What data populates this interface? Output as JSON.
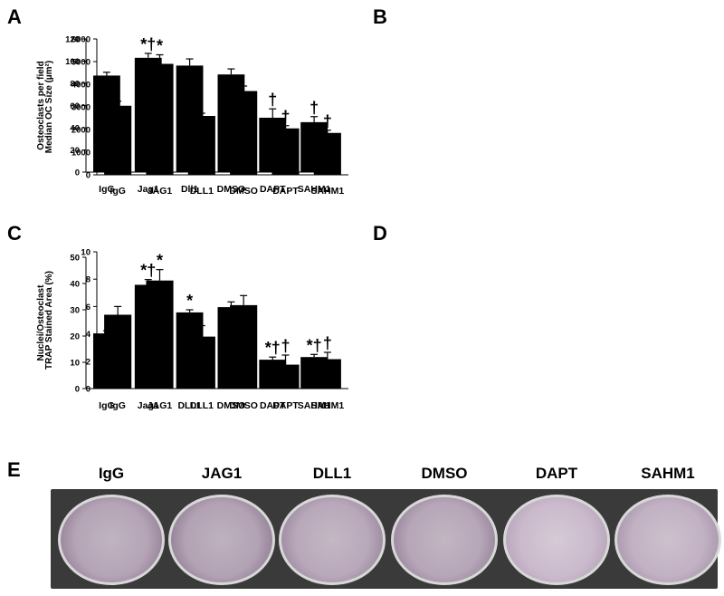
{
  "panels": {
    "A": "A",
    "B": "B",
    "C": "C",
    "D": "D",
    "E": "E"
  },
  "chart_data": [
    {
      "id": "A",
      "type": "bar",
      "ylabel": "Osteoclasts per  field",
      "ylim": [
        0,
        120
      ],
      "ytick_step": 20,
      "yticks": [
        "0",
        "20",
        "40",
        "60",
        "80",
        "100",
        "120"
      ],
      "categories": [
        "IgG",
        "Jag1",
        "Dll1",
        "DMSO",
        "DAPT",
        "SAHM1"
      ],
      "values": [
        87,
        103,
        96,
        88,
        49,
        45
      ],
      "errors": [
        3,
        4,
        6,
        5,
        8,
        5
      ],
      "annotations": [
        "",
        "*†",
        "",
        "",
        "†",
        "†"
      ]
    },
    {
      "id": "B",
      "type": "bar",
      "ylabel": "Median OC Size (µm²)",
      "ylim": [
        0,
        6000
      ],
      "ytick_step": 1000,
      "yticks": [
        "0",
        "1000",
        "2000",
        "3000",
        "4000",
        "5000",
        "6000"
      ],
      "categories": [
        "IgG",
        "JAG1",
        "DLL1",
        "DMSO",
        "DAPT",
        "SAHM1"
      ],
      "values": [
        3050,
        4900,
        2600,
        3700,
        2050,
        1850
      ],
      "errors": [
        200,
        400,
        120,
        220,
        120,
        120
      ],
      "annotations": [
        "",
        "*",
        "",
        "",
        "†",
        "†"
      ]
    },
    {
      "id": "C",
      "type": "bar",
      "ylabel": "Nuclei/Osteoclast",
      "ylim": [
        0,
        50
      ],
      "ytick_step": 10,
      "yticks": [
        "0",
        "10",
        "20",
        "30",
        "40",
        "50"
      ],
      "categories": [
        "IgG",
        "Jag1",
        "DLL1",
        "DMSO",
        "DAPT",
        "SAHM1"
      ],
      "values": [
        21,
        39.5,
        29,
        31,
        11,
        12
      ],
      "errors": [
        1,
        2,
        1,
        2,
        1,
        1
      ],
      "annotations": [
        "",
        "*†",
        "*",
        "",
        "*†",
        "*†"
      ]
    },
    {
      "id": "D",
      "type": "bar",
      "ylabel": "TRAP Stained Area (%)",
      "ylim": [
        0,
        10
      ],
      "ytick_step": 2,
      "yticks": [
        "0",
        "2",
        "4",
        "6",
        "8",
        "10"
      ],
      "categories": [
        "IgG",
        "JAG1",
        "DLL1",
        "DMSO",
        "DAPT",
        "SAHM1"
      ],
      "values": [
        5.4,
        7.9,
        3.8,
        6.1,
        1.75,
        2.15
      ],
      "errors": [
        0.6,
        0.8,
        0.8,
        0.7,
        0.7,
        0.5
      ],
      "annotations": [
        "",
        "*",
        "",
        "",
        "†",
        "†"
      ]
    }
  ],
  "wells": {
    "labels": [
      "IgG",
      "JAG1",
      "DLL1",
      "DMSO",
      "DAPT",
      "SAHM1"
    ],
    "intensity": [
      0.85,
      0.9,
      0.75,
      0.8,
      0.35,
      0.55
    ]
  }
}
